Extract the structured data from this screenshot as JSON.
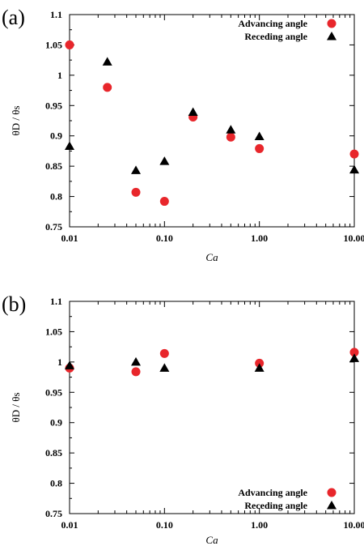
{
  "chart_data": [
    {
      "type": "scatter",
      "panel_label": "(a)",
      "xlabel": "Ca",
      "ylabel": "θD / θs",
      "xscale": "log",
      "xlim": [
        0.01,
        10.0
      ],
      "ylim": [
        0.75,
        1.1
      ],
      "xticks": [
        "0.01",
        "0.10",
        "1.00",
        "10.00"
      ],
      "yticks": [
        "0.75",
        "0.8",
        "0.85",
        "0.9",
        "0.95",
        "1",
        "1.05",
        "1.1"
      ],
      "legend_position": "top-right",
      "series": [
        {
          "name": "Advancing angle",
          "marker": "circle",
          "color": "#e8262b",
          "points": [
            [
              0.01,
              1.05
            ],
            [
              0.025,
              0.98
            ],
            [
              0.05,
              0.807
            ],
            [
              0.1,
              0.792
            ],
            [
              0.2,
              0.931
            ],
            [
              0.5,
              0.898
            ],
            [
              1.0,
              0.879
            ],
            [
              10.0,
              0.87
            ]
          ]
        },
        {
          "name": "Receding angle",
          "marker": "triangle",
          "color": "#000000",
          "points": [
            [
              0.01,
              0.883
            ],
            [
              0.025,
              1.022
            ],
            [
              0.05,
              0.843
            ],
            [
              0.1,
              0.858
            ],
            [
              0.2,
              0.939
            ],
            [
              0.5,
              0.91
            ],
            [
              1.0,
              0.899
            ],
            [
              10.0,
              0.844
            ]
          ]
        }
      ]
    },
    {
      "type": "scatter",
      "panel_label": "(b)",
      "xlabel": "Ca",
      "ylabel": "θD / θs",
      "xscale": "log",
      "xlim": [
        0.01,
        10.0
      ],
      "ylim": [
        0.75,
        1.1
      ],
      "xticks": [
        "0.01",
        "0.10",
        "1.00",
        "10.00"
      ],
      "yticks": [
        "0.75",
        "0.8",
        "0.85",
        "0.9",
        "0.95",
        "1",
        "1.05",
        "1.1"
      ],
      "legend_position": "bottom-right",
      "series": [
        {
          "name": "Advancing angle",
          "marker": "circle",
          "color": "#e8262b",
          "points": [
            [
              0.01,
              0.99
            ],
            [
              0.05,
              0.984
            ],
            [
              0.1,
              1.014
            ],
            [
              1.0,
              0.998
            ],
            [
              10.0,
              1.016
            ]
          ]
        },
        {
          "name": "Receding angle",
          "marker": "triangle",
          "color": "#000000",
          "points": [
            [
              0.01,
              0.994
            ],
            [
              0.05,
              1.0
            ],
            [
              0.1,
              0.99
            ],
            [
              1.0,
              0.99
            ],
            [
              10.0,
              1.006
            ]
          ]
        }
      ]
    }
  ]
}
